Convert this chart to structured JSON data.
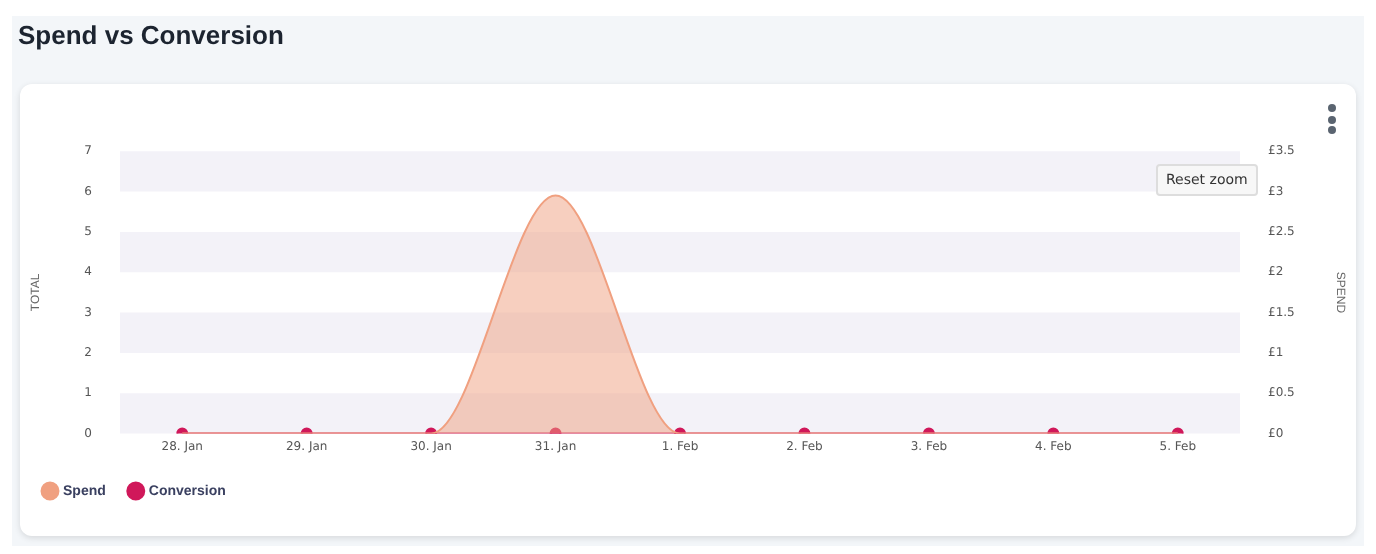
{
  "chart_data": {
    "type": "line",
    "title": "Spend vs Conversion",
    "ylabel": "TOTAL",
    "y2label": "SPEND",
    "categories": [
      "28. Jan",
      "29. Jan",
      "30. Jan",
      "31. Jan",
      "1. Feb",
      "2. Feb",
      "3. Feb",
      "4. Feb",
      "5. Feb"
    ],
    "series": [
      {
        "name": "Spend",
        "type": "area",
        "axis": "y2",
        "color": "#f0a080",
        "marker": "none",
        "values": [
          0,
          0,
          0,
          2.95,
          0,
          0,
          0,
          0,
          0
        ]
      },
      {
        "name": "Conversion",
        "color": "#d0185a",
        "marker": "circle",
        "values": [
          0,
          0,
          0,
          0,
          0,
          0,
          0,
          0,
          0
        ]
      }
    ],
    "ylim": [
      0,
      7
    ],
    "yticks": [
      0,
      1,
      2,
      3,
      4,
      5,
      6,
      7
    ],
    "y2lim": [
      0,
      3.5
    ],
    "y2ticks": [
      {
        "value": 0,
        "label": "£0"
      },
      {
        "value": 0.5,
        "label": "£0.5"
      },
      {
        "value": 1,
        "label": "£1"
      },
      {
        "value": 1.5,
        "label": "£1.5"
      },
      {
        "value": 2,
        "label": "£2"
      },
      {
        "value": 2.5,
        "label": "£2.5"
      },
      {
        "value": 3,
        "label": "£3"
      },
      {
        "value": 3.5,
        "label": "£3.5"
      }
    ],
    "bands": [
      {
        "axis": "y",
        "from": 0,
        "to": 1,
        "color": "#f3f2f8"
      },
      {
        "axis": "y",
        "from": 2,
        "to": 3,
        "color": "#f3f2f8"
      },
      {
        "axis": "y",
        "from": 4,
        "to": 5,
        "color": "#f3f2f8"
      },
      {
        "axis": "y",
        "from": 6,
        "to": 7,
        "color": "#f3f2f8"
      }
    ],
    "legend": "bottom left",
    "annotations": [
      "Reset zoom"
    ]
  }
}
